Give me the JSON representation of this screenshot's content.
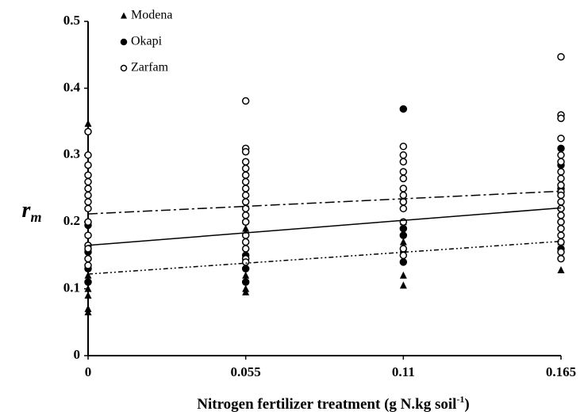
{
  "chart_data": {
    "type": "scatter",
    "x_label": [
      "Nitrogen fertilizer treatment (g N.kg soil",
      "-1",
      ")"
    ],
    "y_label": [
      "r",
      "m"
    ],
    "xlim": [
      0,
      0.165
    ],
    "xticks": [
      0,
      0.055,
      0.11,
      0.165
    ],
    "ylim": [
      0,
      0.5
    ],
    "yticks": [
      0,
      0.1,
      0.2,
      0.3,
      0.4,
      0.5
    ],
    "grid": false,
    "legend": "top-left",
    "series": [
      {
        "name": "Modena",
        "marker": "triangle",
        "color": "#000000",
        "dash": "6 3 2 3 2 3",
        "x": [
          0,
          0,
          0,
          0,
          0,
          0,
          0.055,
          0.055,
          0.055,
          0.055,
          0.11,
          0.11,
          0.11,
          0.11,
          0.11,
          0.165,
          0.165,
          0.165
        ],
        "values": [
          0.347,
          0.07,
          0.065,
          0.09,
          0.1,
          0.12,
          0.095,
          0.1,
          0.12,
          0.19,
          0.105,
          0.12,
          0.16,
          0.17,
          0.2,
          0.128,
          0.15,
          0.17
        ],
        "trend_values": [
          0.122,
          0.171
        ]
      },
      {
        "name": "Okapi",
        "marker": "circle",
        "color": "#000000",
        "dash": "none",
        "x": [
          0,
          0,
          0,
          0,
          0.055,
          0.055,
          0.055,
          0.055,
          0.11,
          0.11,
          0.11,
          0.11,
          0.11,
          0.165,
          0.165,
          0.165,
          0.165,
          0.165,
          0.165
        ],
        "values": [
          0.195,
          0.13,
          0.11,
          0.155,
          0.15,
          0.13,
          0.11,
          0.2,
          0.369,
          0.23,
          0.14,
          0.18,
          0.19,
          0.31,
          0.285,
          0.25,
          0.22,
          0.2,
          0.16
        ],
        "trend_values": [
          0.165,
          0.221
        ]
      },
      {
        "name": "Zarfam",
        "marker": "open-circle",
        "color": "#000000",
        "dash": "12 4 3 4",
        "x": [
          0,
          0,
          0,
          0,
          0,
          0,
          0,
          0,
          0,
          0,
          0,
          0,
          0,
          0,
          0,
          0.055,
          0.055,
          0.055,
          0.055,
          0.055,
          0.055,
          0.055,
          0.055,
          0.055,
          0.055,
          0.055,
          0.055,
          0.055,
          0.055,
          0.055,
          0.055,
          0.055,
          0.055,
          0.11,
          0.11,
          0.11,
          0.11,
          0.11,
          0.11,
          0.11,
          0.11,
          0.11,
          0.11,
          0.11,
          0.11,
          0.165,
          0.165,
          0.165,
          0.165,
          0.165,
          0.165,
          0.165,
          0.165,
          0.165,
          0.165,
          0.165,
          0.165,
          0.165,
          0.165,
          0.165,
          0.165,
          0.165,
          0.165,
          0.165,
          0.165
        ],
        "values": [
          0.335,
          0.3,
          0.285,
          0.27,
          0.26,
          0.25,
          0.24,
          0.23,
          0.22,
          0.2,
          0.18,
          0.165,
          0.16,
          0.145,
          0.135,
          0.381,
          0.31,
          0.305,
          0.29,
          0.28,
          0.27,
          0.26,
          0.25,
          0.24,
          0.23,
          0.22,
          0.21,
          0.2,
          0.18,
          0.17,
          0.16,
          0.145,
          0.14,
          0.313,
          0.3,
          0.29,
          0.275,
          0.265,
          0.25,
          0.24,
          0.23,
          0.22,
          0.2,
          0.16,
          0.15,
          0.447,
          0.36,
          0.355,
          0.325,
          0.3,
          0.29,
          0.275,
          0.265,
          0.255,
          0.245,
          0.24,
          0.23,
          0.22,
          0.21,
          0.2,
          0.19,
          0.18,
          0.17,
          0.155,
          0.145
        ],
        "trend_values": [
          0.212,
          0.246
        ]
      }
    ]
  }
}
